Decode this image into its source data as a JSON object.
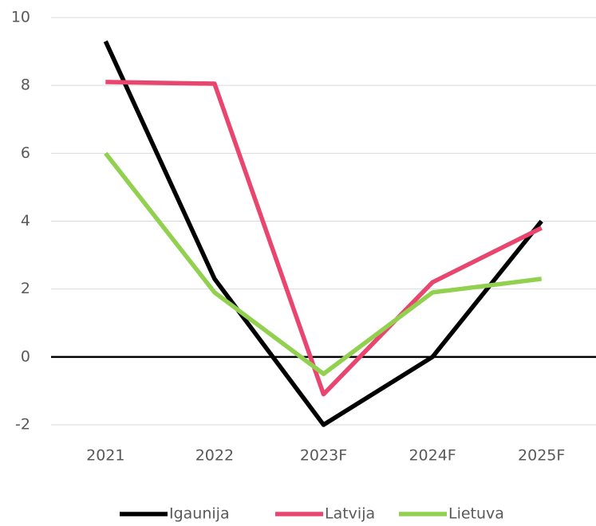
{
  "chart_data": {
    "type": "line",
    "categories": [
      "2021",
      "2022",
      "2023F",
      "2024F",
      "2025F"
    ],
    "series": [
      {
        "name": "Igaunija",
        "color": "#000000",
        "values": [
          9.3,
          2.3,
          -2.0,
          0.0,
          4.0
        ]
      },
      {
        "name": "Latvija",
        "color": "#e8456f",
        "values": [
          8.1,
          8.05,
          -1.1,
          2.2,
          3.8
        ]
      },
      {
        "name": "Lietuva",
        "color": "#92d050",
        "values": [
          6.0,
          1.9,
          -0.5,
          1.9,
          2.3
        ]
      }
    ],
    "ylim": [
      -2,
      10
    ],
    "yticks": [
      -2,
      0,
      2,
      4,
      6,
      8,
      10
    ],
    "grid": true,
    "legend": "bottom"
  }
}
